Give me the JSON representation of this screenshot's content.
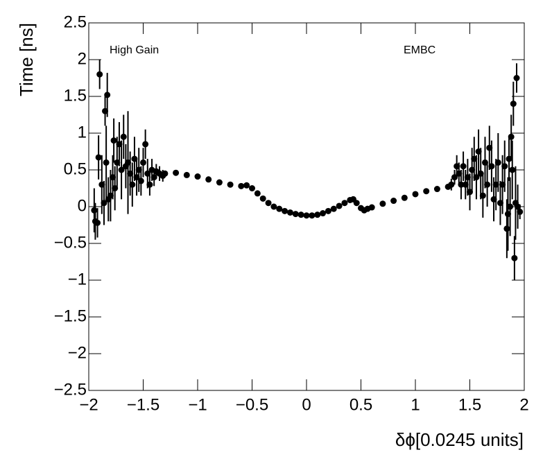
{
  "chart_data": {
    "type": "scatter",
    "xlabel": "δϕ[0.0245 units]",
    "ylabel": "Time [ns]",
    "annotations": [
      "High Gain",
      "EMBC"
    ],
    "xlim": [
      -2,
      2
    ],
    "ylim": [
      -2.5,
      2.5
    ],
    "xticks": [
      {
        "value": -2,
        "label": "−2"
      },
      {
        "value": -1.5,
        "label": "−1.5"
      },
      {
        "value": -1,
        "label": "−1"
      },
      {
        "value": -0.5,
        "label": "−0.5"
      },
      0,
      0.5,
      1,
      1.5,
      2
    ],
    "yticks": [
      {
        "value": -2.5,
        "label": "−2.5"
      },
      {
        "value": -2,
        "label": "−2"
      },
      {
        "value": -1.5,
        "label": "−1.5"
      },
      {
        "value": -1,
        "label": "−1"
      },
      {
        "value": -0.5,
        "label": "−0.5"
      },
      0,
      0.5,
      1,
      1.5,
      2,
      2.5
    ],
    "color": "#000000",
    "series": [
      {
        "x": [
          -1.95,
          -1.94,
          -1.92,
          -1.91,
          -1.9,
          -1.88,
          -1.86,
          -1.85,
          -1.84,
          -1.83,
          -1.82,
          -1.8,
          -1.78,
          -1.77,
          -1.76,
          -1.74,
          -1.72,
          -1.7,
          -1.68,
          -1.66,
          -1.64,
          -1.62,
          -1.6,
          -1.58,
          -1.56,
          -1.54,
          -1.52,
          -1.5,
          -1.48,
          -1.46,
          -1.44,
          -1.42,
          -1.4,
          -1.38,
          -1.35,
          -1.32,
          -1.3,
          -1.2,
          -1.1,
          -1.0,
          -0.9,
          -0.8,
          -0.7,
          -0.6,
          -0.55,
          -0.5,
          -0.45,
          -0.4,
          -0.35,
          -0.3,
          -0.25,
          -0.2,
          -0.15,
          -0.1,
          -0.05,
          0,
          0.05,
          0.1,
          0.15,
          0.2,
          0.25,
          0.3,
          0.35,
          0.4,
          0.43,
          0.46,
          0.5,
          0.53,
          0.56,
          0.6,
          0.7,
          0.8,
          0.9,
          1.0,
          1.1,
          1.2,
          1.3,
          1.33,
          1.36,
          1.38,
          1.4,
          1.42,
          1.44,
          1.46,
          1.48,
          1.5,
          1.52,
          1.54,
          1.56,
          1.58,
          1.6,
          1.62,
          1.64,
          1.66,
          1.68,
          1.7,
          1.72,
          1.74,
          1.76,
          1.78,
          1.8,
          1.82,
          1.84,
          1.85,
          1.86,
          1.87,
          1.88,
          1.89,
          1.9,
          1.91,
          1.92,
          1.93,
          1.94,
          1.96
        ],
        "values": [
          -0.05,
          -0.2,
          -0.22,
          0.67,
          1.8,
          0.3,
          0.05,
          1.3,
          0.6,
          1.52,
          0.1,
          0.15,
          0.4,
          0.9,
          0.25,
          0.6,
          0.85,
          0.5,
          0.95,
          0.55,
          0.6,
          0.45,
          0.3,
          0.65,
          0.4,
          0.5,
          0.35,
          0.6,
          0.85,
          0.45,
          0.3,
          0.5,
          0.4,
          0.48,
          0.45,
          0.42,
          0.45,
          0.46,
          0.43,
          0.41,
          0.37,
          0.33,
          0.3,
          0.28,
          0.29,
          0.25,
          0.18,
          0.11,
          0.05,
          0.0,
          -0.03,
          -0.06,
          -0.08,
          -0.1,
          -0.11,
          -0.12,
          -0.12,
          -0.11,
          -0.09,
          -0.06,
          -0.03,
          0.01,
          0.05,
          0.09,
          0.1,
          0.05,
          -0.02,
          -0.05,
          -0.03,
          -0.01,
          0.04,
          0.08,
          0.12,
          0.17,
          0.21,
          0.24,
          0.27,
          0.3,
          0.4,
          0.55,
          0.45,
          0.3,
          0.55,
          0.3,
          0.4,
          0.2,
          0.5,
          0.65,
          0.4,
          0.75,
          0.45,
          0.15,
          0.6,
          0.3,
          0.8,
          0.55,
          0.1,
          0.3,
          0.6,
          0.05,
          0.3,
          0.55,
          -0.3,
          -0.1,
          0.65,
          0.0,
          0.95,
          0.5,
          1.4,
          -0.7,
          0.05,
          1.75,
          0.0,
          -0.07
        ],
        "errors": [
          0.3,
          0.25,
          0.2,
          0.3,
          0.2,
          0.4,
          0.3,
          0.2,
          0.5,
          0.3,
          0.3,
          0.35,
          0.3,
          0.3,
          0.3,
          0.35,
          0.3,
          0.4,
          0.3,
          0.3,
          0.7,
          0.3,
          0.3,
          0.3,
          0.25,
          0.3,
          0.2,
          0.2,
          0.2,
          0.2,
          0.15,
          0.15,
          0.12,
          0.1,
          0.1,
          0.08,
          0.03,
          0.03,
          0.03,
          0.02,
          0.02,
          0.02,
          0.02,
          0.02,
          0.02,
          0.02,
          0.02,
          0.02,
          0.02,
          0.02,
          0.02,
          0.02,
          0.02,
          0.02,
          0.02,
          0.02,
          0.02,
          0.02,
          0.02,
          0.02,
          0.02,
          0.02,
          0.02,
          0.02,
          0.02,
          0.02,
          0.02,
          0.02,
          0.02,
          0.02,
          0.02,
          0.02,
          0.02,
          0.02,
          0.02,
          0.03,
          0.03,
          0.08,
          0.1,
          0.15,
          0.15,
          0.2,
          0.2,
          0.2,
          0.25,
          0.25,
          0.3,
          0.3,
          0.3,
          0.3,
          0.35,
          0.3,
          0.35,
          0.3,
          0.3,
          0.35,
          0.3,
          0.35,
          0.4,
          0.3,
          0.4,
          0.35,
          0.4,
          0.5,
          0.3,
          0.4,
          0.3,
          0.4,
          0.3,
          0.3,
          0.5,
          0.2,
          0.3,
          0.1
        ]
      }
    ]
  }
}
